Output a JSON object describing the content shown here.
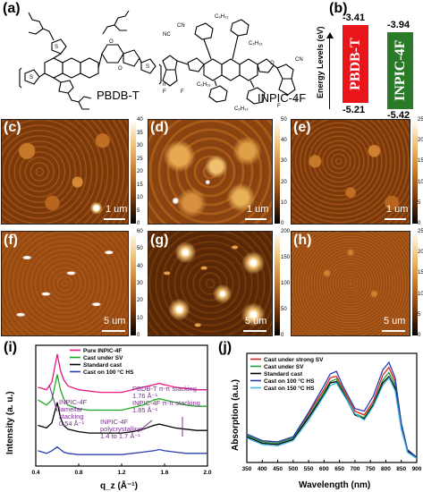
{
  "panels": {
    "a": "(a)",
    "b": "(b)",
    "c": "(c)",
    "d": "(d)",
    "e": "(e)",
    "f": "(f)",
    "g": "(g)",
    "h": "(h)",
    "i": "(i)",
    "j": "(j)"
  },
  "molecules": {
    "donor_name": "PBDB-T",
    "acceptor_name": "INPIC-4F",
    "subscript_n": "n",
    "hexyl": "C₆H₁₃",
    "cn": "CN",
    "nc": "NC",
    "f": "F",
    "o": "O",
    "s": "S"
  },
  "energy": {
    "axis_label": "Energy Levels (eV)",
    "donor": {
      "name": "PBDB-T",
      "lumo": "-3.41",
      "homo": "-5.21",
      "color": "#e8161b"
    },
    "acceptor": {
      "name": "INPIC-4F",
      "lumo": "-3.94",
      "homo": "-5.42",
      "color": "#2a7a2a"
    }
  },
  "afm": {
    "row1": [
      {
        "scale": "1 um",
        "ticks": [
          "40",
          "35",
          "30",
          "25",
          "20",
          "15",
          "10",
          "5",
          "0"
        ]
      },
      {
        "scale": "1 um",
        "ticks": [
          "50",
          "40",
          "30",
          "20",
          "10",
          "0"
        ]
      },
      {
        "scale": "1 um",
        "ticks": [
          "25",
          "20",
          "15",
          "10",
          "5",
          "0"
        ]
      }
    ],
    "row2": [
      {
        "scale": "5 um",
        "ticks": [
          "60",
          "50",
          "40",
          "30",
          "20",
          "10",
          "0"
        ]
      },
      {
        "scale": "5 um",
        "ticks": [
          "200",
          "150",
          "100",
          "50",
          "0"
        ]
      },
      {
        "scale": "5 um",
        "ticks": [
          "25",
          "20",
          "15",
          "10",
          "5",
          "0"
        ]
      }
    ]
  },
  "chart_data": [
    {
      "type": "line",
      "xlabel": "q_z (Å⁻¹)",
      "ylabel": "Intensity (a. u.)",
      "xlim": [
        0.4,
        2.0
      ],
      "xticks": [
        "0.4",
        "0.8",
        "1.2",
        "1.6",
        "2.0"
      ],
      "legend_position": "top-left",
      "series": [
        {
          "name": "Pure INPIC-4F",
          "color": "#e8197d",
          "x": [
            0.42,
            0.5,
            0.55,
            0.6,
            0.63,
            0.66,
            0.7,
            0.8,
            0.9,
            1.0,
            1.1,
            1.2,
            1.3,
            1.4,
            1.5,
            1.55,
            1.6,
            1.7,
            1.8,
            1.9,
            2.0
          ],
          "y": [
            0.72,
            0.7,
            0.76,
            0.98,
            0.85,
            0.78,
            0.73,
            0.7,
            0.69,
            0.68,
            0.68,
            0.68,
            0.7,
            0.72,
            0.74,
            0.75,
            0.74,
            0.72,
            0.71,
            0.7,
            0.7
          ]
        },
        {
          "name": "Cast under SV",
          "color": "#21a821",
          "x": [
            0.42,
            0.5,
            0.55,
            0.6,
            0.63,
            0.66,
            0.7,
            0.8,
            0.9,
            1.0,
            1.1,
            1.2,
            1.3,
            1.4,
            1.5,
            1.55,
            1.6,
            1.7,
            1.8,
            1.9,
            2.0
          ],
          "y": [
            0.62,
            0.58,
            0.62,
            0.82,
            0.7,
            0.63,
            0.58,
            0.55,
            0.54,
            0.54,
            0.54,
            0.54,
            0.56,
            0.58,
            0.62,
            0.63,
            0.62,
            0.6,
            0.58,
            0.57,
            0.57
          ]
        },
        {
          "name": "Standard cast",
          "color": "#000000",
          "x": [
            0.42,
            0.5,
            0.55,
            0.6,
            0.63,
            0.66,
            0.7,
            0.8,
            0.9,
            1.0,
            1.1,
            1.2,
            1.3,
            1.4,
            1.5,
            1.55,
            1.6,
            1.7,
            1.8,
            1.9,
            2.0
          ],
          "y": [
            0.42,
            0.4,
            0.44,
            0.6,
            0.48,
            0.42,
            0.39,
            0.37,
            0.36,
            0.36,
            0.36,
            0.36,
            0.37,
            0.39,
            0.42,
            0.43,
            0.42,
            0.4,
            0.39,
            0.38,
            0.38
          ]
        },
        {
          "name": "Cast on 100 °C HS",
          "color": "#2b3fb0",
          "x": [
            0.42,
            0.5,
            0.55,
            0.6,
            0.63,
            0.66,
            0.7,
            0.8,
            0.9,
            1.0,
            1.1,
            1.2,
            1.3,
            1.4,
            1.5,
            1.55,
            1.6,
            1.7,
            1.8,
            1.9,
            2.0
          ],
          "y": [
            0.22,
            0.2,
            0.22,
            0.25,
            0.23,
            0.21,
            0.2,
            0.19,
            0.19,
            0.19,
            0.19,
            0.19,
            0.2,
            0.21,
            0.22,
            0.23,
            0.22,
            0.21,
            0.2,
            0.2,
            0.2
          ]
        }
      ],
      "annotations": [
        {
          "text": "PBDB-T π-π stacking 1.76 Å⁻¹"
        },
        {
          "text": "INPIC-4F π-π stacking 1.85 Å⁻¹"
        },
        {
          "text": "INPIC-4F lamellar stacking 0.54 Å⁻¹"
        },
        {
          "text": "INPIC-4F polycrystalline 1.4 to 1.7 Å⁻¹"
        }
      ]
    },
    {
      "type": "line",
      "xlabel": "Wavelength (nm)",
      "ylabel": "Absorption (a.u.)",
      "xlim": [
        350,
        900
      ],
      "xticks": [
        "350",
        "400",
        "450",
        "500",
        "550",
        "600",
        "650",
        "700",
        "750",
        "800",
        "850",
        "900"
      ],
      "legend_position": "top-left",
      "series": [
        {
          "name": "Cast under strong SV",
          "color": "#e32222",
          "x": [
            350,
            400,
            450,
            500,
            550,
            600,
            620,
            640,
            660,
            700,
            730,
            760,
            790,
            810,
            830,
            850,
            870,
            900
          ],
          "y": [
            0.22,
            0.17,
            0.16,
            0.2,
            0.38,
            0.57,
            0.66,
            0.67,
            0.58,
            0.4,
            0.37,
            0.48,
            0.68,
            0.74,
            0.63,
            0.3,
            0.1,
            0.04
          ]
        },
        {
          "name": "Cast under SV",
          "color": "#1e9e3a",
          "x": [
            350,
            400,
            450,
            500,
            550,
            600,
            620,
            640,
            660,
            700,
            730,
            760,
            790,
            810,
            830,
            850,
            870,
            900
          ],
          "y": [
            0.21,
            0.16,
            0.15,
            0.19,
            0.36,
            0.55,
            0.63,
            0.65,
            0.56,
            0.38,
            0.35,
            0.46,
            0.64,
            0.7,
            0.6,
            0.28,
            0.09,
            0.04
          ]
        },
        {
          "name": "Standard cast",
          "color": "#000000",
          "x": [
            350,
            400,
            450,
            500,
            550,
            600,
            620,
            640,
            660,
            700,
            730,
            760,
            790,
            810,
            830,
            850,
            870,
            900
          ],
          "y": [
            0.2,
            0.15,
            0.14,
            0.18,
            0.35,
            0.53,
            0.62,
            0.63,
            0.55,
            0.37,
            0.34,
            0.45,
            0.62,
            0.67,
            0.58,
            0.27,
            0.09,
            0.04
          ]
        },
        {
          "name": "Cast on 100 °C HS",
          "color": "#2b3fb0",
          "x": [
            350,
            400,
            450,
            500,
            550,
            600,
            620,
            640,
            660,
            700,
            730,
            760,
            790,
            810,
            830,
            850,
            870,
            900
          ],
          "y": [
            0.22,
            0.17,
            0.16,
            0.2,
            0.39,
            0.6,
            0.69,
            0.71,
            0.6,
            0.42,
            0.4,
            0.52,
            0.72,
            0.78,
            0.66,
            0.31,
            0.1,
            0.04
          ]
        },
        {
          "name": "Cast on 150 °C HS",
          "color": "#3fb7e0",
          "x": [
            350,
            400,
            450,
            500,
            550,
            600,
            620,
            640,
            660,
            700,
            730,
            760,
            790,
            810,
            830,
            850,
            870,
            900
          ],
          "y": [
            0.19,
            0.14,
            0.13,
            0.17,
            0.33,
            0.52,
            0.6,
            0.62,
            0.54,
            0.38,
            0.33,
            0.44,
            0.6,
            0.66,
            0.56,
            0.26,
            0.08,
            0.03
          ]
        }
      ]
    }
  ]
}
